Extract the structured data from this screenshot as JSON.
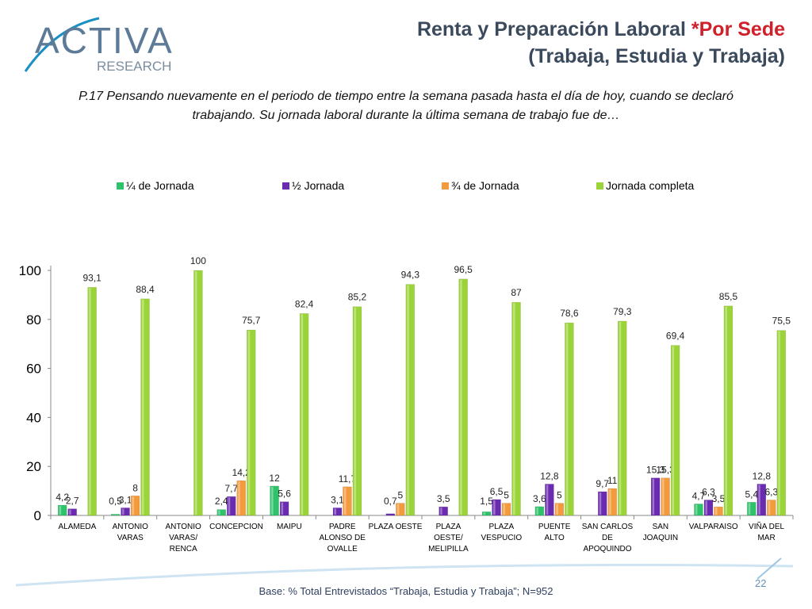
{
  "header": {
    "logo_main": "ACTIVA",
    "logo_sub": "RESEARCH",
    "title_part1": "Renta y Preparación Laboral ",
    "title_accent": "*Por Sede",
    "title_line2": "(Trabaja, Estudia y Trabaja)"
  },
  "question": "P.17 Pensando nuevamente en el periodo de tiempo entre la semana pasada hasta el día de hoy, cuando se declaró trabajando. Su jornada laboral durante la última semana de trabajo fue de…",
  "footer": {
    "base_note": "Base: % Total Entrevistados “Trabaja, Estudia y Trabaja”; N=952",
    "page_number": "22"
  },
  "colors": {
    "quarter": "#2ec26a",
    "half": "#6a2bb0",
    "three_quarter": "#f39a3c",
    "full": "#9bd438",
    "title_accent": "#d0202a",
    "title": "#3a4a5c"
  },
  "chart_data": {
    "type": "bar",
    "title": "",
    "xlabel": "",
    "ylabel": "",
    "ylim": [
      0,
      100
    ],
    "yticks": [
      0,
      20,
      40,
      60,
      80,
      100
    ],
    "grid": false,
    "legend_position": "top",
    "categories": [
      [
        "ALAMEDA"
      ],
      [
        "ANTONIO",
        "VARAS"
      ],
      [
        "ANTONIO",
        "VARAS/",
        "RENCA"
      ],
      [
        "CONCEPCION"
      ],
      [
        "MAIPU"
      ],
      [
        "PADRE",
        "ALONSO DE",
        "OVALLE"
      ],
      [
        "PLAZA OESTE"
      ],
      [
        "PLAZA",
        "OESTE/",
        "MELIPILLA"
      ],
      [
        "PLAZA",
        "VESPUCIO"
      ],
      [
        "PUENTE",
        "ALTO"
      ],
      [
        "SAN CARLOS",
        "DE",
        "APOQUINDO"
      ],
      [
        "SAN",
        "JOAQUIN"
      ],
      [
        "VALPARAISO"
      ],
      [
        "VIÑA DEL",
        "MAR"
      ]
    ],
    "series": [
      {
        "name": "¼ de Jornada",
        "color_key": "quarter",
        "values": [
          4.2,
          0.5,
          null,
          2.4,
          12,
          null,
          null,
          null,
          1.5,
          3.6,
          null,
          null,
          4.7,
          5.4
        ],
        "labels": [
          "4,2",
          "0,5",
          "",
          "2,4",
          "12",
          "",
          "",
          "",
          "1,5",
          "3,6",
          "",
          "",
          "4,7",
          "5,4"
        ]
      },
      {
        "name": "½ Jornada",
        "color_key": "half",
        "values": [
          2.7,
          3.1,
          null,
          7.7,
          5.6,
          3.1,
          0.7,
          3.5,
          6.5,
          12.8,
          9.7,
          15.3,
          6.3,
          12.8
        ],
        "labels": [
          "2,7",
          "3,1",
          "",
          "7,7",
          "5,6",
          "3,1",
          "0,7",
          "3,5",
          "6,5",
          "12,8",
          "9,7",
          "15,3",
          "6,3",
          "12,8"
        ]
      },
      {
        "name": "¾ de Jornada",
        "color_key": "three_quarter",
        "values": [
          null,
          8,
          null,
          14.2,
          null,
          11.7,
          5,
          null,
          5,
          5,
          11,
          15.3,
          3.5,
          6.3
        ],
        "labels": [
          "",
          "8",
          "",
          "14,2",
          "",
          "11,7",
          "5",
          "",
          "5",
          "5",
          "11",
          "15,3",
          "3,5",
          "6,3"
        ]
      },
      {
        "name": "Jornada completa",
        "color_key": "full",
        "values": [
          93.1,
          88.4,
          100,
          75.7,
          82.4,
          85.2,
          94.3,
          96.5,
          87,
          78.6,
          79.3,
          69.4,
          85.5,
          75.5
        ],
        "labels": [
          "93,1",
          "88,4",
          "100",
          "75,7",
          "82,4",
          "85,2",
          "94,3",
          "96,5",
          "87",
          "78,6",
          "79,3",
          "69,4",
          "85,5",
          "75,5"
        ]
      }
    ]
  }
}
